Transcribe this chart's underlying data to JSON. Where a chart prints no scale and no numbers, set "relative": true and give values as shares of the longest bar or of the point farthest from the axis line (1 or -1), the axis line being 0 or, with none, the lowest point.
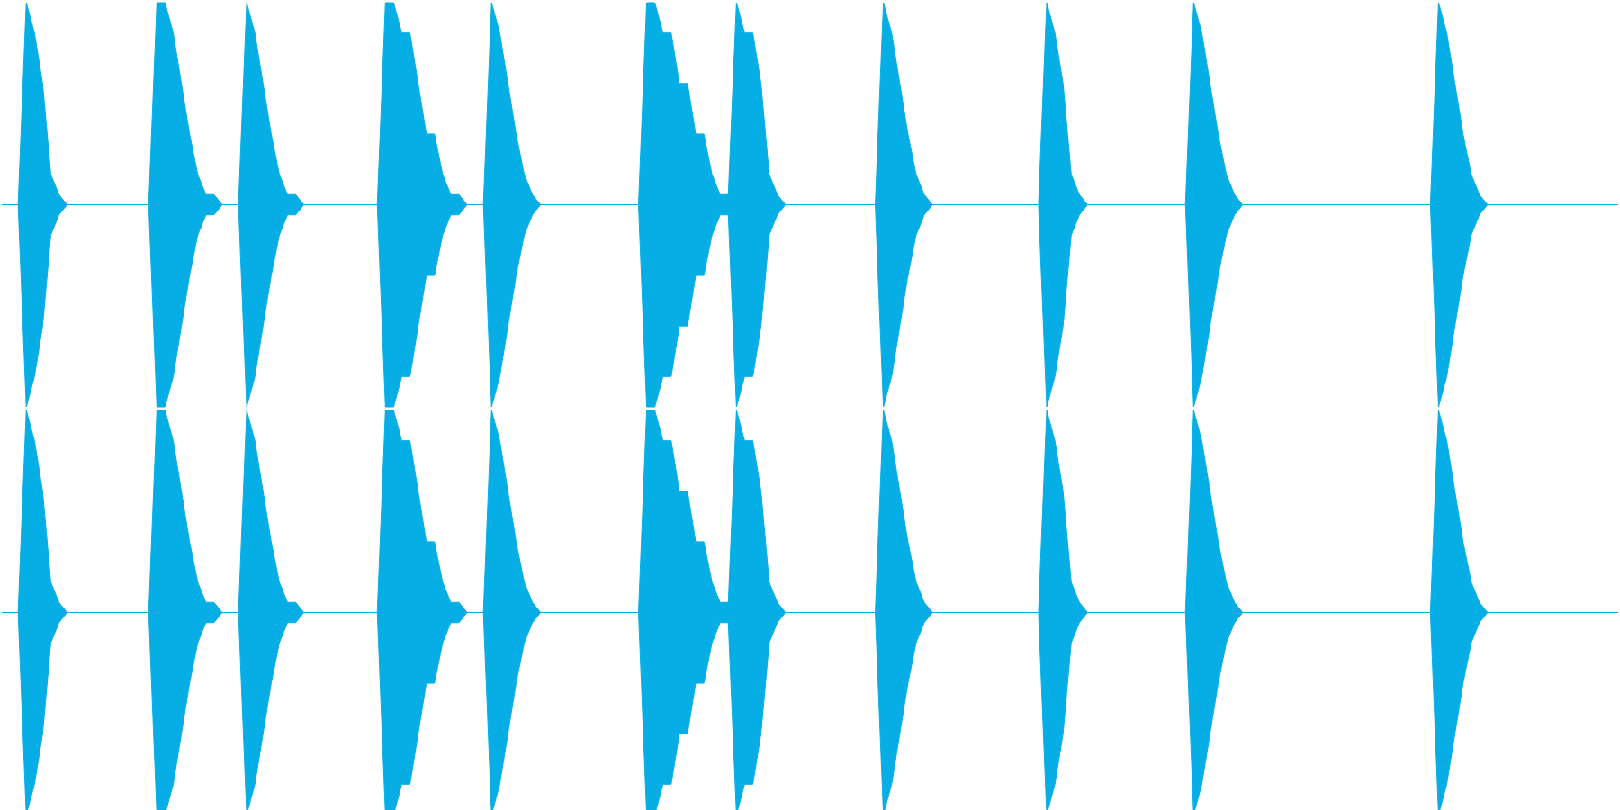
{
  "chart_data": [
    {
      "type": "area",
      "relative": true,
      "categories": [
        null,
        null,
        null,
        null,
        null,
        null,
        null,
        null,
        null,
        null,
        null,
        null,
        null,
        null,
        null,
        null,
        null,
        null,
        null,
        null,
        null,
        null,
        null,
        null,
        null,
        null,
        null,
        null,
        null,
        null,
        null,
        null,
        null,
        null,
        null,
        null,
        null,
        null,
        null,
        null,
        null,
        null,
        null,
        null,
        null,
        null,
        null,
        null,
        null,
        null,
        null,
        null,
        null,
        null,
        null,
        null,
        null,
        null,
        null,
        null,
        null,
        null,
        null,
        null,
        null,
        null,
        null,
        null,
        null,
        null,
        null,
        null,
        null,
        null,
        null,
        null,
        null,
        null,
        null,
        null,
        null,
        null,
        null,
        null,
        null,
        null,
        null,
        null,
        null,
        null,
        null,
        null,
        null,
        null,
        null,
        null,
        null,
        null,
        null,
        null,
        null,
        null,
        null,
        null,
        null,
        null,
        null,
        null,
        null,
        null,
        null,
        null,
        null,
        null,
        null,
        null,
        null,
        null,
        null,
        null,
        null,
        null,
        null,
        null,
        null,
        null,
        null,
        null,
        null,
        null,
        null,
        null,
        null,
        null,
        null,
        null,
        null,
        null,
        null,
        null,
        null,
        null,
        null,
        null,
        null,
        null,
        null,
        null,
        null,
        null,
        null,
        null,
        null,
        null,
        null,
        null,
        null,
        null,
        null,
        null,
        null,
        null,
        null,
        null,
        null,
        null,
        null,
        null,
        null,
        null,
        null,
        null,
        null,
        null,
        null,
        null,
        null,
        null,
        null,
        null,
        null,
        null,
        null,
        null,
        null,
        null,
        null,
        null,
        null,
        null,
        null,
        null,
        null,
        null,
        null,
        null,
        null,
        null,
        null
      ],
      "series": [
        {
          "color": "#05aee4",
          "values": [
            0,
            0,
            0,
            1,
            0.85,
            0.6,
            0.15,
            0.05,
            0,
            0,
            0,
            0,
            0,
            0,
            0,
            0,
            0,
            0,
            0,
            1,
            1,
            0.85,
            0.6,
            0.35,
            0.15,
            0.05,
            0.05,
            0,
            0,
            0,
            1,
            0.85,
            0.6,
            0.35,
            0.15,
            0.05,
            0.05,
            0,
            0,
            0,
            0,
            0,
            0,
            0,
            0,
            0,
            0,
            1,
            1,
            0.85,
            0.85,
            0.6,
            0.35,
            0.35,
            0.15,
            0.05,
            0.05,
            0,
            0,
            0,
            1,
            0.85,
            0.6,
            0.35,
            0.15,
            0.05,
            0,
            0,
            0,
            0,
            0,
            0,
            0,
            0,
            0,
            0,
            0,
            0,
            0,
            1,
            1,
            0.85,
            0.85,
            0.6,
            0.6,
            0.35,
            0.35,
            0.15,
            0.05,
            0.05,
            1,
            0.85,
            0.85,
            0.6,
            0.15,
            0.05,
            0,
            0,
            0,
            0,
            0,
            0,
            0,
            0,
            0,
            0,
            0,
            0,
            1,
            0.85,
            0.6,
            0.35,
            0.15,
            0.05,
            0,
            0,
            0,
            0,
            0,
            0,
            0,
            0,
            0,
            0,
            0,
            0,
            0,
            0,
            1,
            0.85,
            0.6,
            0.15,
            0.05,
            0,
            0,
            0,
            0,
            0,
            0,
            0,
            0,
            0,
            0,
            0,
            0,
            0,
            1,
            0.85,
            0.6,
            0.35,
            0.15,
            0.05,
            0,
            0,
            0,
            0,
            0,
            0,
            0,
            0,
            0,
            0,
            0,
            0,
            0,
            0,
            0,
            0,
            0,
            0,
            0,
            0,
            0,
            0,
            0,
            0,
            1,
            0.85,
            0.6,
            0.35,
            0.15,
            0.05,
            0,
            0,
            0,
            0,
            0,
            0,
            0,
            0,
            0,
            0,
            0,
            0,
            0,
            0,
            0,
            0,
            0
          ]
        },
        {
          "color": "#06aee5",
          "values": [
            0,
            0,
            0,
            -1,
            -0.85,
            -0.6,
            -0.15,
            -0.05,
            0,
            0,
            0,
            0,
            0,
            0,
            0,
            0,
            0,
            0,
            0,
            -1,
            -1,
            -0.85,
            -0.6,
            -0.35,
            -0.15,
            -0.05,
            -0.05,
            0,
            0,
            0,
            -1,
            -0.85,
            -0.6,
            -0.35,
            -0.15,
            -0.05,
            -0.05,
            0,
            0,
            0,
            0,
            0,
            0,
            0,
            0,
            0,
            0,
            -1,
            -1,
            -0.85,
            -0.85,
            -0.6,
            -0.35,
            -0.35,
            -0.15,
            -0.05,
            -0.05,
            0,
            0,
            0,
            -1,
            -0.85,
            -0.6,
            -0.35,
            -0.15,
            -0.05,
            0,
            0,
            0,
            0,
            0,
            0,
            0,
            0,
            0,
            0,
            0,
            0,
            0,
            -1,
            -1,
            -0.85,
            -0.85,
            -0.6,
            -0.6,
            -0.35,
            -0.35,
            -0.15,
            -0.05,
            -0.05,
            -1,
            -0.85,
            -0.85,
            -0.6,
            -0.15,
            -0.05,
            0,
            0,
            0,
            0,
            0,
            0,
            0,
            0,
            0,
            0,
            0,
            0,
            -1,
            -0.85,
            -0.6,
            -0.35,
            -0.15,
            -0.05,
            0,
            0,
            0,
            0,
            0,
            0,
            0,
            0,
            0,
            0,
            0,
            0,
            0,
            0,
            -1,
            -0.85,
            -0.6,
            -0.15,
            -0.05,
            0,
            0,
            0,
            0,
            0,
            0,
            0,
            0,
            0,
            0,
            0,
            0,
            0,
            -1,
            -0.85,
            -0.6,
            -0.35,
            -0.15,
            -0.05,
            0,
            0,
            0,
            0,
            0,
            0,
            0,
            0,
            0,
            0,
            0,
            0,
            0,
            0,
            0,
            0,
            0,
            0,
            0,
            0,
            0,
            0,
            0,
            0,
            -1,
            -0.85,
            -0.6,
            -0.35,
            -0.15,
            -0.05,
            0,
            0,
            0,
            0,
            0,
            0,
            0,
            0,
            0,
            0,
            0,
            0,
            0,
            0,
            0,
            0,
            0
          ]
        }
      ]
    },
    {
      "type": "area",
      "relative": true,
      "categories": [
        null,
        null,
        null,
        null,
        null,
        null,
        null,
        null,
        null,
        null,
        null,
        null,
        null,
        null,
        null,
        null,
        null,
        null,
        null,
        null,
        null,
        null,
        null,
        null,
        null,
        null,
        null,
        null,
        null,
        null,
        null,
        null,
        null,
        null,
        null,
        null,
        null,
        null,
        null,
        null,
        null,
        null,
        null,
        null,
        null,
        null,
        null,
        null,
        null,
        null,
        null,
        null,
        null,
        null,
        null,
        null,
        null,
        null,
        null,
        null,
        null,
        null,
        null,
        null,
        null,
        null,
        null,
        null,
        null,
        null,
        null,
        null,
        null,
        null,
        null,
        null,
        null,
        null,
        null,
        null,
        null,
        null,
        null,
        null,
        null,
        null,
        null,
        null,
        null,
        null,
        null,
        null,
        null,
        null,
        null,
        null,
        null,
        null,
        null,
        null,
        null,
        null,
        null,
        null,
        null,
        null,
        null,
        null,
        null,
        null,
        null,
        null,
        null,
        null,
        null,
        null,
        null,
        null,
        null,
        null,
        null,
        null,
        null,
        null,
        null,
        null,
        null,
        null,
        null,
        null,
        null,
        null,
        null,
        null,
        null,
        null,
        null,
        null,
        null,
        null,
        null,
        null,
        null,
        null,
        null,
        null,
        null,
        null,
        null,
        null,
        null,
        null,
        null,
        null,
        null,
        null,
        null,
        null,
        null,
        null,
        null,
        null,
        null,
        null,
        null,
        null,
        null,
        null,
        null,
        null,
        null,
        null,
        null,
        null,
        null,
        null,
        null,
        null,
        null,
        null,
        null,
        null,
        null,
        null,
        null,
        null,
        null,
        null,
        null,
        null,
        null,
        null,
        null,
        null,
        null,
        null,
        null,
        null,
        null
      ],
      "series": [
        {
          "color": "#05aee4",
          "values": [
            0,
            0,
            0,
            1,
            0.85,
            0.6,
            0.15,
            0.05,
            0,
            0,
            0,
            0,
            0,
            0,
            0,
            0,
            0,
            0,
            0,
            1,
            1,
            0.85,
            0.6,
            0.35,
            0.15,
            0.05,
            0.05,
            0,
            0,
            0,
            1,
            0.85,
            0.6,
            0.35,
            0.15,
            0.05,
            0.05,
            0,
            0,
            0,
            0,
            0,
            0,
            0,
            0,
            0,
            0,
            1,
            1,
            0.85,
            0.85,
            0.6,
            0.35,
            0.35,
            0.15,
            0.05,
            0.05,
            0,
            0,
            0,
            1,
            0.85,
            0.6,
            0.35,
            0.15,
            0.05,
            0,
            0,
            0,
            0,
            0,
            0,
            0,
            0,
            0,
            0,
            0,
            0,
            0,
            1,
            1,
            0.85,
            0.85,
            0.6,
            0.6,
            0.35,
            0.35,
            0.15,
            0.05,
            0.05,
            1,
            0.85,
            0.85,
            0.6,
            0.15,
            0.05,
            0,
            0,
            0,
            0,
            0,
            0,
            0,
            0,
            0,
            0,
            0,
            0,
            1,
            0.85,
            0.6,
            0.35,
            0.15,
            0.05,
            0,
            0,
            0,
            0,
            0,
            0,
            0,
            0,
            0,
            0,
            0,
            0,
            0,
            0,
            1,
            0.85,
            0.6,
            0.15,
            0.05,
            0,
            0,
            0,
            0,
            0,
            0,
            0,
            0,
            0,
            0,
            0,
            0,
            0,
            1,
            0.85,
            0.6,
            0.35,
            0.15,
            0.05,
            0,
            0,
            0,
            0,
            0,
            0,
            0,
            0,
            0,
            0,
            0,
            0,
            0,
            0,
            0,
            0,
            0,
            0,
            0,
            0,
            0,
            0,
            0,
            0,
            1,
            0.85,
            0.6,
            0.35,
            0.15,
            0.05,
            0,
            0,
            0,
            0,
            0,
            0,
            0,
            0,
            0,
            0,
            0,
            0,
            0,
            0,
            0,
            0,
            0
          ]
        },
        {
          "color": "#06aee5",
          "values": [
            0,
            0,
            0,
            -1,
            -0.85,
            -0.6,
            -0.15,
            -0.05,
            0,
            0,
            0,
            0,
            0,
            0,
            0,
            0,
            0,
            0,
            0,
            -1,
            -1,
            -0.85,
            -0.6,
            -0.35,
            -0.15,
            -0.05,
            -0.05,
            0,
            0,
            0,
            -1,
            -0.85,
            -0.6,
            -0.35,
            -0.15,
            -0.05,
            -0.05,
            0,
            0,
            0,
            0,
            0,
            0,
            0,
            0,
            0,
            0,
            -1,
            -1,
            -0.85,
            -0.85,
            -0.6,
            -0.35,
            -0.35,
            -0.15,
            -0.05,
            -0.05,
            0,
            0,
            0,
            -1,
            -0.85,
            -0.6,
            -0.35,
            -0.15,
            -0.05,
            0,
            0,
            0,
            0,
            0,
            0,
            0,
            0,
            0,
            0,
            0,
            0,
            0,
            -1,
            -1,
            -0.85,
            -0.85,
            -0.6,
            -0.6,
            -0.35,
            -0.35,
            -0.15,
            -0.05,
            -0.05,
            -1,
            -0.85,
            -0.85,
            -0.6,
            -0.15,
            -0.05,
            0,
            0,
            0,
            0,
            0,
            0,
            0,
            0,
            0,
            0,
            0,
            0,
            -1,
            -0.85,
            -0.6,
            -0.35,
            -0.15,
            -0.05,
            0,
            0,
            0,
            0,
            0,
            0,
            0,
            0,
            0,
            0,
            0,
            0,
            0,
            0,
            -1,
            -0.85,
            -0.6,
            -0.15,
            -0.05,
            0,
            0,
            0,
            0,
            0,
            0,
            0,
            0,
            0,
            0,
            0,
            0,
            0,
            -1,
            -0.85,
            -0.6,
            -0.35,
            -0.15,
            -0.05,
            0,
            0,
            0,
            0,
            0,
            0,
            0,
            0,
            0,
            0,
            0,
            0,
            0,
            0,
            0,
            0,
            0,
            0,
            0,
            0,
            0,
            0,
            0,
            0,
            -1,
            -0.85,
            -0.6,
            -0.35,
            -0.15,
            -0.05,
            0,
            0,
            0,
            0,
            0,
            0,
            0,
            0,
            0,
            0,
            0,
            0,
            0,
            0,
            0,
            0,
            0
          ]
        }
      ]
    }
  ]
}
